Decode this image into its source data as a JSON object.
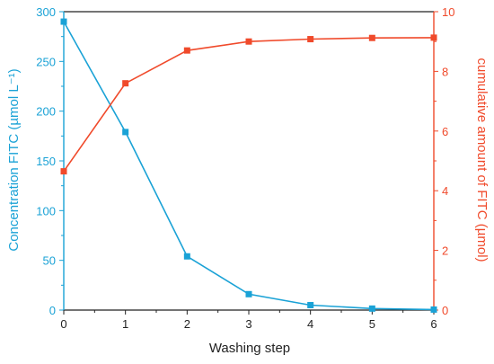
{
  "chart_data": {
    "type": "line",
    "title": "",
    "xlabel": "Washing step",
    "x": [
      0,
      1,
      2,
      3,
      4,
      5,
      6
    ],
    "xlim": [
      0,
      6
    ],
    "xticks": [
      "0",
      "1",
      "2",
      "3",
      "4",
      "5",
      "6"
    ],
    "left_axis": {
      "label": "Concentration FITC (µmol L⁻¹)",
      "ylim": [
        0,
        300
      ],
      "ticks": [
        "0",
        "50",
        "100",
        "150",
        "200",
        "250",
        "300"
      ],
      "color": "#1aa2d6"
    },
    "right_axis": {
      "label": "cumulative amount of FITC (µmol)",
      "ylim": [
        0,
        10
      ],
      "ticks": [
        "0",
        "2",
        "4",
        "6",
        "8",
        "10"
      ],
      "color": "#f04a2b"
    },
    "series": [
      {
        "axis": "left",
        "color": "#1aa2d6",
        "values": [
          290,
          179,
          54,
          16,
          5,
          1.5,
          0.5
        ]
      },
      {
        "axis": "right",
        "color": "#f04a2b",
        "values": [
          4.65,
          7.6,
          8.7,
          9.0,
          9.08,
          9.12,
          9.13
        ]
      }
    ],
    "grid": false,
    "legend": "none"
  }
}
